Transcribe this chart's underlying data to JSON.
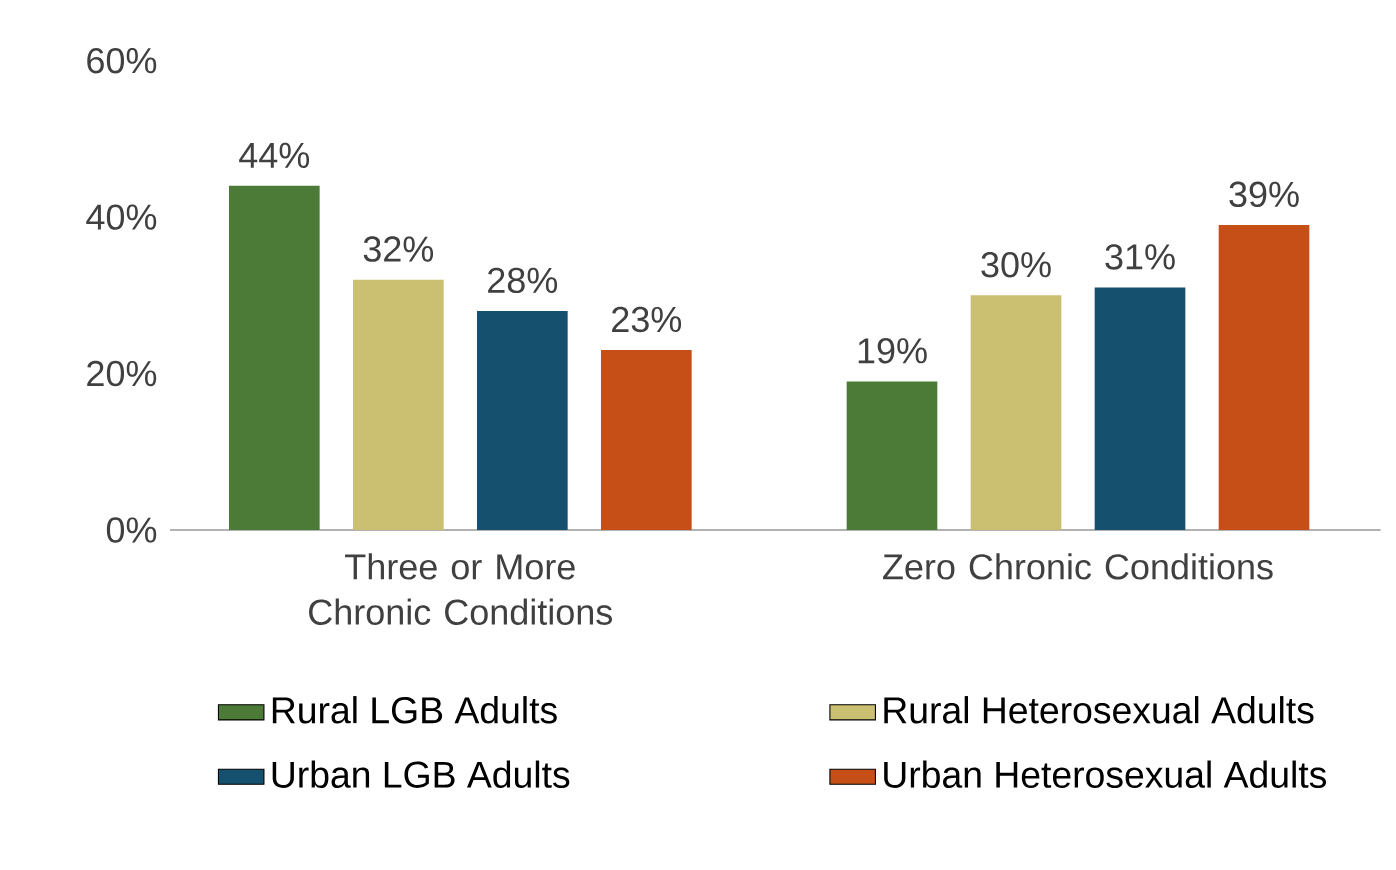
{
  "chart_data": {
    "type": "bar",
    "categories": [
      "Three or More Chronic Conditions",
      "Zero Chronic Conditions"
    ],
    "series": [
      {
        "name": "Rural LGB Adults",
        "color": "#4c7a37",
        "values": [
          44,
          19
        ],
        "value_labels": [
          "44%",
          "19%"
        ]
      },
      {
        "name": "Rural Heterosexual Adults",
        "color": "#cbbf72",
        "values": [
          32,
          30
        ],
        "value_labels": [
          "32%",
          "30%"
        ]
      },
      {
        "name": "Urban LGB Adults",
        "color": "#15506f",
        "values": [
          28,
          31
        ],
        "value_labels": [
          "28%",
          "31%"
        ]
      },
      {
        "name": "Urban Heterosexual Adults",
        "color": "#c64f17",
        "values": [
          23,
          39
        ],
        "value_labels": [
          "23%",
          "39%"
        ]
      }
    ],
    "ylim": [
      0,
      60
    ],
    "yticks": [
      {
        "value": 0,
        "label": "0%"
      },
      {
        "value": 20,
        "label": "20%"
      },
      {
        "value": 40,
        "label": "40%"
      },
      {
        "value": 60,
        "label": "60%"
      }
    ],
    "legend": "bottom",
    "grid": false
  }
}
